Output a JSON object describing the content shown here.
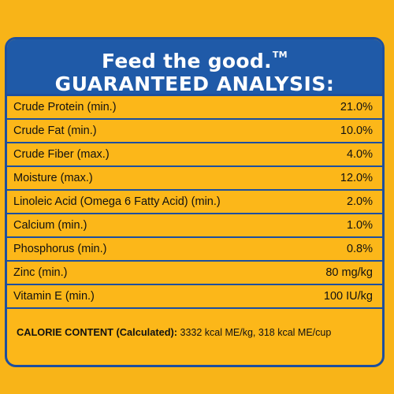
{
  "header": {
    "tagline": "Feed the good.",
    "trademark": "TM",
    "title": "GUARANTEED ANALYSIS:"
  },
  "analysis": [
    {
      "nutrient": "Crude Protein (min.)",
      "value": "21.0%"
    },
    {
      "nutrient": "Crude Fat (min.)",
      "value": "10.0%"
    },
    {
      "nutrient": "Crude Fiber (max.)",
      "value": "4.0%"
    },
    {
      "nutrient": "Moisture (max.)",
      "value": "12.0%"
    },
    {
      "nutrient": "Linoleic Acid (Omega 6 Fatty Acid) (min.)",
      "value": "2.0%"
    },
    {
      "nutrient": "Calcium (min.)",
      "value": "1.0%"
    },
    {
      "nutrient": "Phosphorus (min.)",
      "value": "0.8%"
    },
    {
      "nutrient": "Zinc (min.)",
      "value": "80 mg/kg"
    },
    {
      "nutrient": "Vitamin E (min.)",
      "value": "100 IU/kg"
    }
  ],
  "calorie": {
    "label": "CALORIE CONTENT (Calculated):",
    "value": " 3332 kcal ME/kg, 318 kcal ME/cup"
  },
  "colors": {
    "background": "#f8b418",
    "header_blue": "#1f5aa8",
    "border_blue": "#1d4f9e"
  }
}
